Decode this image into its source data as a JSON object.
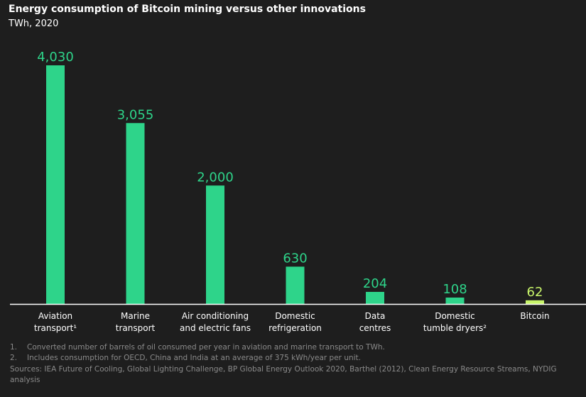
{
  "title": "Energy consumption of Bitcoin mining versus other innovations",
  "subtitle": "TWh, 2020",
  "colors": {
    "bar": "#2ed48a",
    "highlight": "#c8f56a",
    "axis": "#ffffff",
    "background": "#1e1e1e"
  },
  "chart_data": {
    "type": "bar",
    "title": "Energy consumption of Bitcoin mining versus other innovations",
    "subtitle": "TWh, 2020",
    "xlabel": "",
    "ylabel": "",
    "ylim": [
      0,
      4400
    ],
    "grid": false,
    "categories": [
      [
        "Aviation",
        "transport¹"
      ],
      [
        "Marine",
        "transport"
      ],
      [
        "Air conditioning",
        "and electric fans"
      ],
      [
        "Domestic",
        "refrigeration"
      ],
      [
        "Data",
        "centres"
      ],
      [
        "Domestic",
        "tumble dryers²"
      ],
      [
        "Bitcoin"
      ]
    ],
    "values": [
      4030,
      3055,
      2000,
      630,
      204,
      108,
      62
    ],
    "value_labels": [
      "4,030",
      "3,055",
      "2,000",
      "630",
      "204",
      "108",
      "62"
    ],
    "highlight_index": 6
  },
  "footnotes": [
    {
      "num": "1.",
      "text": "Converted number of barrels of oil consumed per year in aviation and marine transport to TWh."
    },
    {
      "num": "2.",
      "text": "Includes consumption for OECD, China and India at an average of 375 kWh/year per unit."
    }
  ],
  "sources": "Sources: IEA Future of Cooling, Global Lighting Challenge, BP Global Energy Outlook 2020, Barthel (2012), Clean Energy Resource Streams, NYDIG analysis"
}
